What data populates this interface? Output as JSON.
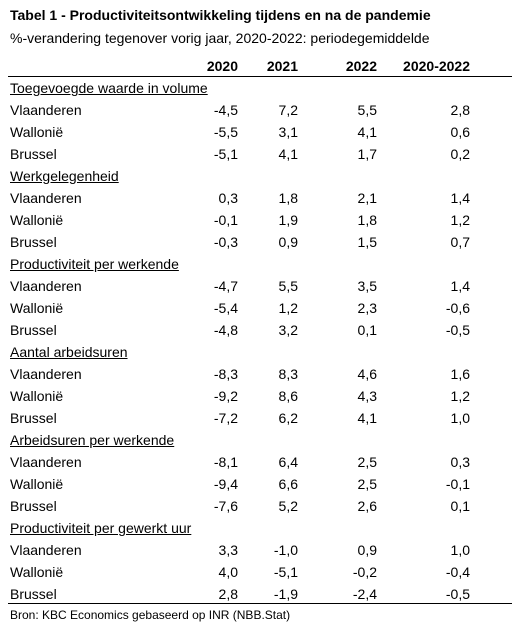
{
  "header": {
    "title": "Tabel 1 - Productiviteitsontwikkeling tijdens en na de pandemie",
    "subtitle": "%-verandering tegenover vorig jaar, 2020-2022: periodegemiddelde"
  },
  "table": {
    "columns": [
      "2020",
      "2021",
      "2022",
      "2020-2022"
    ],
    "sections": [
      {
        "title": "Toegevoegde waarde in volume",
        "rows": [
          {
            "label": "Vlaanderen",
            "values": [
              "-4,5",
              "7,2",
              "5,5",
              "2,8"
            ]
          },
          {
            "label": "Wallonië",
            "values": [
              "-5,5",
              "3,1",
              "4,1",
              "0,6"
            ]
          },
          {
            "label": "Brussel",
            "values": [
              "-5,1",
              "4,1",
              "1,7",
              "0,2"
            ]
          }
        ]
      },
      {
        "title": "Werkgelegenheid",
        "rows": [
          {
            "label": "Vlaanderen",
            "values": [
              "0,3",
              "1,8",
              "2,1",
              "1,4"
            ]
          },
          {
            "label": "Wallonië",
            "values": [
              "-0,1",
              "1,9",
              "1,8",
              "1,2"
            ]
          },
          {
            "label": "Brussel",
            "values": [
              "-0,3",
              "0,9",
              "1,5",
              "0,7"
            ]
          }
        ]
      },
      {
        "title": "Productiviteit per werkende",
        "rows": [
          {
            "label": "Vlaanderen",
            "values": [
              "-4,7",
              "5,5",
              "3,5",
              "1,4"
            ]
          },
          {
            "label": "Wallonië",
            "values": [
              "-5,4",
              "1,2",
              "2,3",
              "-0,6"
            ]
          },
          {
            "label": "Brussel",
            "values": [
              "-4,8",
              "3,2",
              "0,1",
              "-0,5"
            ]
          }
        ]
      },
      {
        "title": "Aantal arbeidsuren",
        "rows": [
          {
            "label": "Vlaanderen",
            "values": [
              "-8,3",
              "8,3",
              "4,6",
              "1,6"
            ]
          },
          {
            "label": "Wallonië",
            "values": [
              "-9,2",
              "8,6",
              "4,3",
              "1,2"
            ]
          },
          {
            "label": "Brussel",
            "values": [
              "-7,2",
              "6,2",
              "4,1",
              "1,0"
            ]
          }
        ]
      },
      {
        "title": "Arbeidsuren per werkende",
        "rows": [
          {
            "label": "Vlaanderen",
            "values": [
              "-8,1",
              "6,4",
              "2,5",
              "0,3"
            ]
          },
          {
            "label": "Wallonië",
            "values": [
              "-9,4",
              "6,6",
              "2,5",
              "-0,1"
            ]
          },
          {
            "label": "Brussel",
            "values": [
              "-7,6",
              "5,2",
              "2,6",
              "0,1"
            ]
          }
        ]
      },
      {
        "title": "Productiviteit per gewerkt uur",
        "rows": [
          {
            "label": "Vlaanderen",
            "values": [
              "3,3",
              "-1,0",
              "0,9",
              "1,0"
            ]
          },
          {
            "label": "Wallonië",
            "values": [
              "4,0",
              "-5,1",
              "-0,2",
              "-0,4"
            ]
          },
          {
            "label": "Brussel",
            "values": [
              "2,8",
              "-1,9",
              "-2,4",
              "-0,5"
            ]
          }
        ]
      }
    ]
  },
  "source": "Bron: KBC Economics gebaseerd op INR (NBB.Stat)"
}
